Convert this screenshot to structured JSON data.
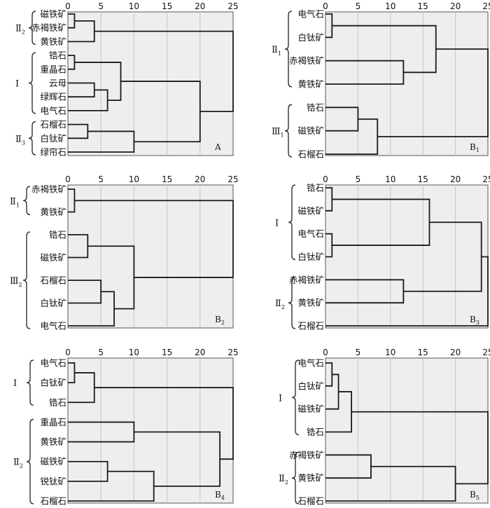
{
  "figure": {
    "panels_label": "Six dendrograms (cluster analysis of heavy minerals)"
  },
  "chart_data": [
    {
      "type": "dendrogram",
      "panel_label": "A",
      "panel_label_sub": "",
      "xlim": [
        0,
        25
      ],
      "ticks": [
        0,
        5,
        10,
        15,
        20,
        25
      ],
      "leaves": [
        "磁铁矿",
        "赤褐铁矿",
        "黄铁矿",
        "锆石",
        "重晶石",
        "云母",
        "绿辉石",
        "电气石",
        "石榴石",
        "白钛矿",
        "绿帘石"
      ],
      "merges": [
        {
          "a": "L0",
          "b": "L1",
          "h": 1
        },
        {
          "a": "C0",
          "b": "L2",
          "h": 4
        },
        {
          "a": "L3",
          "b": "L4",
          "h": 1
        },
        {
          "a": "L5",
          "b": "L6",
          "h": 4
        },
        {
          "a": "C3",
          "b": "L7",
          "h": 6
        },
        {
          "a": "C2",
          "b": "C4",
          "h": 8
        },
        {
          "a": "L8",
          "b": "L9",
          "h": 3
        },
        {
          "a": "C6",
          "b": "L10",
          "h": 10
        },
        {
          "a": "C5",
          "b": "C7",
          "h": 20
        },
        {
          "a": "C1",
          "b": "C8",
          "h": 25
        }
      ],
      "groups": [
        {
          "label": "Ⅱ",
          "sub": "2",
          "from": 0,
          "to": 2
        },
        {
          "label": "Ⅰ",
          "sub": "",
          "from": 3,
          "to": 7
        },
        {
          "label": "Ⅱ",
          "sub": "3",
          "from": 8,
          "to": 10
        }
      ]
    },
    {
      "type": "dendrogram",
      "panel_label": "B",
      "panel_label_sub": "1",
      "xlim": [
        0,
        25
      ],
      "ticks": [
        0,
        5,
        10,
        15,
        20,
        25
      ],
      "leaves": [
        "电气石",
        "白钛矿",
        "赤褐铁矿",
        "黄铁矿",
        "锆石",
        "磁铁矿",
        "石榴石"
      ],
      "merges": [
        {
          "a": "L0",
          "b": "L1",
          "h": 1
        },
        {
          "a": "L2",
          "b": "L3",
          "h": 12
        },
        {
          "a": "C0",
          "b": "C1",
          "h": 17
        },
        {
          "a": "L4",
          "b": "L5",
          "h": 5
        },
        {
          "a": "C3",
          "b": "L6",
          "h": 8
        },
        {
          "a": "C2",
          "b": "C4",
          "h": 25
        }
      ],
      "groups": [
        {
          "label": "Ⅱ",
          "sub": "1",
          "from": 0,
          "to": 3
        },
        {
          "label": "Ⅲ",
          "sub": "1",
          "from": 4,
          "to": 6
        }
      ]
    },
    {
      "type": "dendrogram",
      "panel_label": "B",
      "panel_label_sub": "2",
      "xlim": [
        0,
        25
      ],
      "ticks": [
        0,
        5,
        10,
        15,
        20,
        25
      ],
      "leaves": [
        "赤褐铁矿",
        "黄铁矿",
        "锆石",
        "磁铁矿",
        "石榴石",
        "白钛矿",
        "电气石"
      ],
      "merges": [
        {
          "a": "L0",
          "b": "L1",
          "h": 1
        },
        {
          "a": "L2",
          "b": "L3",
          "h": 3
        },
        {
          "a": "L4",
          "b": "L5",
          "h": 5
        },
        {
          "a": "C2",
          "b": "L6",
          "h": 7
        },
        {
          "a": "C1",
          "b": "C3",
          "h": 10
        },
        {
          "a": "C0",
          "b": "C4",
          "h": 25
        }
      ],
      "groups": [
        {
          "label": "Ⅱ",
          "sub": "1",
          "from": 0,
          "to": 1
        },
        {
          "label": "Ⅲ",
          "sub": "2",
          "from": 2,
          "to": 6
        }
      ]
    },
    {
      "type": "dendrogram",
      "panel_label": "B",
      "panel_label_sub": "3",
      "xlim": [
        0,
        25
      ],
      "ticks": [
        0,
        5,
        10,
        15,
        20,
        25
      ],
      "leaves": [
        "锆石",
        "磁铁矿",
        "电气石",
        "白钛矿",
        "赤褐铁矿",
        "黄铁矿",
        "石榴石"
      ],
      "merges": [
        {
          "a": "L0",
          "b": "L1",
          "h": 1
        },
        {
          "a": "L2",
          "b": "L3",
          "h": 1
        },
        {
          "a": "C0",
          "b": "C1",
          "h": 16
        },
        {
          "a": "L4",
          "b": "L5",
          "h": 12
        },
        {
          "a": "C2",
          "b": "C3",
          "h": 24
        },
        {
          "a": "C4",
          "b": "L6",
          "h": 25
        }
      ],
      "groups": [
        {
          "label": "Ⅰ",
          "sub": "",
          "from": 0,
          "to": 3
        },
        {
          "label": "Ⅱ",
          "sub": "2",
          "from": 4,
          "to": 6
        }
      ]
    },
    {
      "type": "dendrogram",
      "panel_label": "B",
      "panel_label_sub": "4",
      "xlim": [
        0,
        25
      ],
      "ticks": [
        0,
        5,
        10,
        15,
        20,
        25
      ],
      "leaves": [
        "电气石",
        "白钛矿",
        "锆石",
        "重晶石",
        "黄铁矿",
        "磁铁矿",
        "锐钛矿",
        "石榴石"
      ],
      "merges": [
        {
          "a": "L0",
          "b": "L1",
          "h": 1
        },
        {
          "a": "C0",
          "b": "L2",
          "h": 4
        },
        {
          "a": "L3",
          "b": "L4",
          "h": 10
        },
        {
          "a": "L5",
          "b": "L6",
          "h": 6
        },
        {
          "a": "C3",
          "b": "L7",
          "h": 13
        },
        {
          "a": "C2",
          "b": "C4",
          "h": 23
        },
        {
          "a": "C1",
          "b": "C5",
          "h": 25
        }
      ],
      "groups": [
        {
          "label": "Ⅰ",
          "sub": "",
          "from": 0,
          "to": 2
        },
        {
          "label": "Ⅱ",
          "sub": "2",
          "from": 3,
          "to": 7
        }
      ]
    },
    {
      "type": "dendrogram",
      "panel_label": "B",
      "panel_label_sub": "5",
      "xlim": [
        0,
        25
      ],
      "ticks": [
        0,
        5,
        10,
        15,
        20,
        25
      ],
      "leaves": [
        "电气石",
        "白钛矿",
        "磁铁矿",
        "锆石",
        "赤褐铁矿",
        "黄铁矿",
        "石榴石"
      ],
      "merges": [
        {
          "a": "L0",
          "b": "L1",
          "h": 1
        },
        {
          "a": "C0",
          "b": "L2",
          "h": 2
        },
        {
          "a": "C1",
          "b": "L3",
          "h": 4
        },
        {
          "a": "L4",
          "b": "L5",
          "h": 7
        },
        {
          "a": "C3",
          "b": "L6",
          "h": 20
        },
        {
          "a": "C2",
          "b": "C4",
          "h": 25
        }
      ],
      "groups": [
        {
          "label": "Ⅰ",
          "sub": "",
          "from": 0,
          "to": 3
        },
        {
          "label": "Ⅱ",
          "sub": "2",
          "from": 4,
          "to": 6
        }
      ]
    }
  ]
}
